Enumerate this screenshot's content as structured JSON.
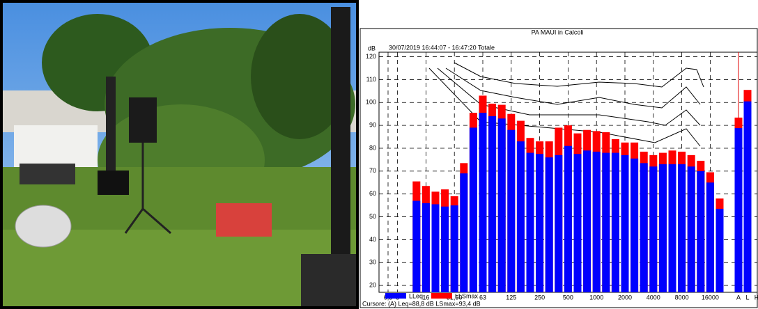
{
  "chart_data": {
    "type": "bar",
    "title": "PA MAUI in Calcoli",
    "subtitle": "30/07/2019 16:44:07 - 16:47:20  Totale",
    "y_label": "dB",
    "categories": [
      "6,3",
      "8",
      null,
      null,
      "16",
      null,
      null,
      "31,50",
      null,
      null,
      "63",
      null,
      null,
      "125",
      null,
      null,
      "250",
      null,
      null,
      "500",
      null,
      null,
      "1000",
      null,
      null,
      "2000",
      null,
      null,
      "4000",
      null,
      null,
      "8000",
      null,
      null,
      "16000",
      null,
      "A",
      "L",
      "H"
    ],
    "series": [
      {
        "name": "LLeq",
        "color": "#0000ff",
        "values": [
          null,
          null,
          null,
          57,
          56,
          55.5,
          54.5,
          55,
          69,
          89,
          95.5,
          94,
          93,
          88,
          83,
          78,
          77.5,
          76,
          77,
          81,
          77.5,
          79,
          78.5,
          78,
          78,
          77,
          75.5,
          73.5,
          72,
          73,
          73,
          73,
          72,
          70,
          65,
          53.5,
          88.8,
          100.5,
          null
        ]
      },
      {
        "name": "LLSmax",
        "color": "#ff0000",
        "values": [
          null,
          null,
          null,
          65.5,
          63.5,
          61,
          62,
          59,
          73.5,
          95.5,
          103,
          99.5,
          99,
          95,
          92,
          84.5,
          83,
          83,
          89,
          90,
          86.5,
          88,
          87.5,
          87,
          84,
          82.5,
          82.5,
          78.5,
          77,
          78,
          79,
          78.5,
          77,
          74.5,
          69.5,
          58,
          93.4,
          105.5,
          null
        ]
      }
    ],
    "ylim": [
      17,
      122
    ],
    "yticks": [
      20,
      30,
      40,
      50,
      60,
      70,
      80,
      90,
      100,
      110,
      120
    ],
    "grid": true,
    "cursor_text": "Cursore: (A)  Leq=88,8 dB  LSmax=93,4 dB"
  }
}
